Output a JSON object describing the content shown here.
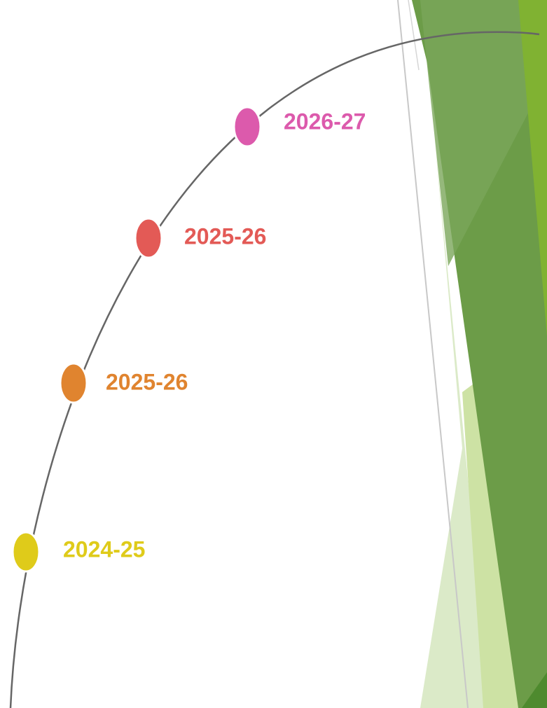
{
  "nodes": [
    {
      "label": "2026-27",
      "color": "#dc5aac"
    },
    {
      "label": "2025-26",
      "color": "#e35a56"
    },
    {
      "label": "2025-26",
      "color": "#e0842f"
    },
    {
      "label": "2024-25",
      "color": "#dfcb1a"
    }
  ]
}
